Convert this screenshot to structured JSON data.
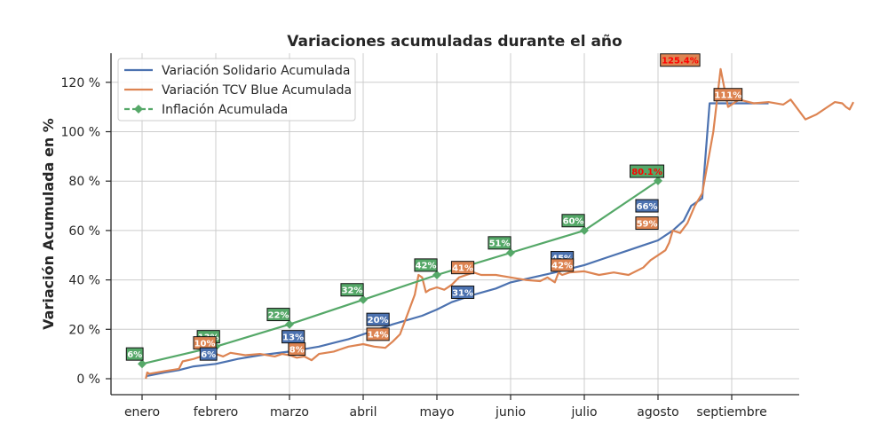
{
  "chart_data": {
    "type": "line",
    "title": "Variaciones acumuladas durante el año",
    "xlabel": "",
    "ylabel": "Variación Acumulada en %",
    "ylim": [
      -6,
      132
    ],
    "x_ticks": [
      "enero",
      "febrero",
      "marzo",
      "abril",
      "mayo",
      "junio",
      "julio",
      "agosto",
      "septiembre"
    ],
    "y_ticks": [
      0,
      20,
      40,
      60,
      80,
      100,
      120
    ],
    "y_tick_labels": [
      "0 %",
      "20 %",
      "40 %",
      "60 %",
      "80 %",
      "100 %",
      "120 %"
    ],
    "grid": true,
    "legend_position": "top-left",
    "colors": {
      "solidario": "#4c72b0",
      "blue": "#dd8452",
      "inflacion": "#55a868",
      "max_text": "#ff0000"
    },
    "series": [
      {
        "name": "Variación Solidario Acumulada",
        "color": "#4c72b0",
        "x": [
          0.05,
          0.3,
          0.5,
          0.7,
          1.0,
          1.3,
          1.6,
          2.0,
          2.4,
          2.8,
          3.0,
          3.4,
          3.8,
          4.0,
          4.2,
          4.5,
          4.8,
          5.0,
          5.3,
          5.6,
          5.8,
          6.0,
          6.3,
          6.6,
          6.8,
          7.0,
          7.2,
          7.35,
          7.45,
          7.6,
          7.7,
          8.0,
          8.3,
          8.5
        ],
        "y": [
          1,
          2.5,
          3.5,
          5,
          6,
          8,
          9.5,
          11,
          13,
          16,
          18,
          22,
          25.5,
          28,
          31,
          34,
          36.5,
          39,
          41,
          43,
          44.5,
          46,
          49,
          52,
          54,
          56,
          60,
          64,
          70,
          73,
          111.5,
          111.5,
          111.5,
          111.5
        ]
      },
      {
        "name": "Variación TCV Blue Acumulada",
        "color": "#dd8452",
        "x": [
          0.05,
          0.07,
          0.1,
          0.3,
          0.5,
          0.55,
          0.7,
          0.8,
          0.9,
          1.0,
          1.1,
          1.2,
          1.4,
          1.6,
          1.8,
          1.9,
          2.0,
          2.1,
          2.2,
          2.3,
          2.4,
          2.6,
          2.8,
          3.0,
          3.15,
          3.3,
          3.4,
          3.5,
          3.6,
          3.7,
          3.75,
          3.8,
          3.85,
          3.9,
          4.0,
          4.1,
          4.2,
          4.3,
          4.4,
          4.5,
          4.6,
          4.8,
          5.0,
          5.2,
          5.4,
          5.5,
          5.6,
          5.65,
          5.7,
          5.8,
          6.0,
          6.2,
          6.4,
          6.6,
          6.8,
          6.9,
          7.0,
          7.1,
          7.15,
          7.2,
          7.3,
          7.4,
          7.5,
          7.6,
          7.75,
          7.85,
          7.95,
          8.1,
          8.3,
          8.5,
          8.7,
          8.8,
          9.0,
          9.15,
          9.3,
          9.4,
          9.5,
          9.55,
          9.6,
          9.65
        ],
        "y": [
          0,
          2.5,
          2,
          3,
          4,
          7,
          8,
          9,
          9.5,
          10,
          9,
          10.5,
          9.5,
          10,
          9,
          10,
          9.5,
          8.5,
          9,
          7.5,
          10,
          11,
          13,
          14,
          13,
          12.5,
          15,
          18,
          26,
          34,
          42,
          41,
          35,
          36,
          37,
          36,
          38,
          41,
          42,
          43,
          42,
          42,
          41,
          40,
          39.5,
          41,
          39,
          43,
          42,
          43,
          43.5,
          42,
          43,
          42,
          45,
          48,
          50,
          52,
          55,
          60,
          59,
          63,
          70,
          75,
          100,
          125.4,
          110,
          113,
          111.5,
          112,
          111,
          113,
          105,
          107,
          110,
          112,
          111.5,
          110,
          109,
          112
        ]
      },
      {
        "name": "Inflación Acumulada",
        "color": "#55a868",
        "x": [
          0,
          1,
          2,
          3,
          4,
          5,
          6,
          7
        ],
        "y": [
          6,
          13,
          22,
          32,
          42,
          51,
          60,
          80.1
        ]
      }
    ],
    "annotations": [
      {
        "text": "6%",
        "x": -0.1,
        "y": 10,
        "color": "#55a868",
        "text_color": "#ffffff"
      },
      {
        "text": "13%",
        "x": 0.9,
        "y": 17,
        "color": "#55a868",
        "text_color": "#ffffff"
      },
      {
        "text": "10%",
        "x": 0.85,
        "y": 14.5,
        "color": "#dd8452",
        "text_color": "#ffffff"
      },
      {
        "text": "6%",
        "x": 0.9,
        "y": 10,
        "color": "#4c72b0",
        "text_color": "#ffffff"
      },
      {
        "text": "22%",
        "x": 1.85,
        "y": 26,
        "color": "#55a868",
        "text_color": "#ffffff"
      },
      {
        "text": "13%",
        "x": 2.05,
        "y": 17,
        "color": "#4c72b0",
        "text_color": "#ffffff"
      },
      {
        "text": "8%",
        "x": 2.1,
        "y": 12,
        "color": "#dd8452",
        "text_color": "#ffffff"
      },
      {
        "text": "32%",
        "x": 2.85,
        "y": 36,
        "color": "#55a868",
        "text_color": "#ffffff"
      },
      {
        "text": "20%",
        "x": 3.2,
        "y": 24,
        "color": "#4c72b0",
        "text_color": "#ffffff"
      },
      {
        "text": "14%",
        "x": 3.2,
        "y": 18,
        "color": "#dd8452",
        "text_color": "#ffffff"
      },
      {
        "text": "42%",
        "x": 3.85,
        "y": 46,
        "color": "#55a868",
        "text_color": "#ffffff"
      },
      {
        "text": "41%",
        "x": 4.35,
        "y": 45,
        "color": "#dd8452",
        "text_color": "#ffffff"
      },
      {
        "text": "31%",
        "x": 4.35,
        "y": 35,
        "color": "#4c72b0",
        "text_color": "#ffffff"
      },
      {
        "text": "51%",
        "x": 4.85,
        "y": 55,
        "color": "#55a868",
        "text_color": "#ffffff"
      },
      {
        "text": "60%",
        "x": 5.85,
        "y": 64,
        "color": "#55a868",
        "text_color": "#ffffff"
      },
      {
        "text": "45%",
        "x": 5.7,
        "y": 49,
        "color": "#4c72b0",
        "text_color": "#ffffff"
      },
      {
        "text": "42%",
        "x": 5.7,
        "y": 46,
        "color": "#dd8452",
        "text_color": "#ffffff"
      },
      {
        "text": "80.1%",
        "x": 6.85,
        "y": 84,
        "color": "#55a868",
        "text_color": "#ff0000"
      },
      {
        "text": "66%",
        "x": 6.85,
        "y": 70,
        "color": "#4c72b0",
        "text_color": "#ffffff"
      },
      {
        "text": "59%",
        "x": 6.85,
        "y": 63,
        "color": "#dd8452",
        "text_color": "#ffffff"
      },
      {
        "text": "125.4%",
        "x": 7.3,
        "y": 129,
        "color": "#dd8452",
        "text_color": "#ff0000"
      },
      {
        "text": "111%",
        "x": 7.95,
        "y": 115,
        "color": "#dd8452",
        "text_color": "#ffffff"
      }
    ]
  }
}
